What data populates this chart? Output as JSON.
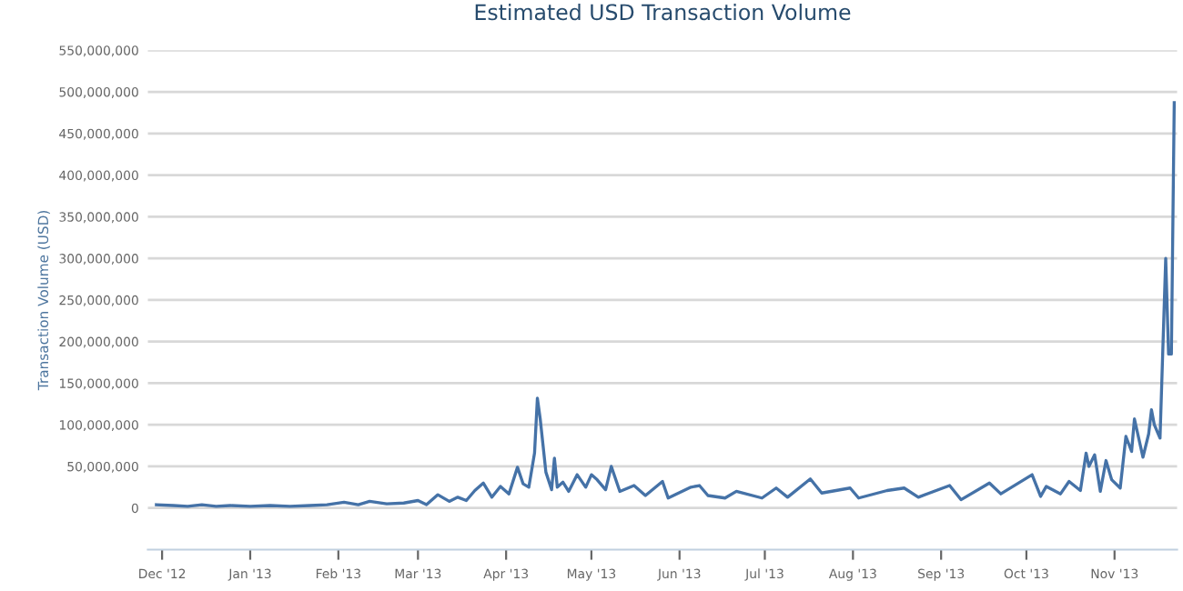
{
  "chart_data": {
    "type": "line",
    "title": "Estimated USD Transaction Volume",
    "ylabel": "Transaction Volume (USD)",
    "xlim": [
      "2012-11-26",
      "2013-11-23"
    ],
    "ylim": [
      -50000000,
      550000000
    ],
    "yticks": [
      {
        "value": 0,
        "label": "0"
      },
      {
        "value": 50000000,
        "label": "50,000,000"
      },
      {
        "value": 100000000,
        "label": "100,000,000"
      },
      {
        "value": 150000000,
        "label": "150,000,000"
      },
      {
        "value": 200000000,
        "label": "200,000,000"
      },
      {
        "value": 250000000,
        "label": "250,000,000"
      },
      {
        "value": 300000000,
        "label": "300,000,000"
      },
      {
        "value": 350000000,
        "label": "350,000,000"
      },
      {
        "value": 400000000,
        "label": "400,000,000"
      },
      {
        "value": 450000000,
        "label": "450,000,000"
      },
      {
        "value": 500000000,
        "label": "500,000,000"
      },
      {
        "value": 550000000,
        "label": "550,000,000"
      }
    ],
    "xticks": [
      {
        "value": "2012-12-01",
        "label": "Dec '12"
      },
      {
        "value": "2013-01-01",
        "label": "Jan '13"
      },
      {
        "value": "2013-02-01",
        "label": "Feb '13"
      },
      {
        "value": "2013-03-01",
        "label": "Mar '13"
      },
      {
        "value": "2013-04-01",
        "label": "Apr '13"
      },
      {
        "value": "2013-05-01",
        "label": "May '13"
      },
      {
        "value": "2013-06-01",
        "label": "Jun '13"
      },
      {
        "value": "2013-07-01",
        "label": "Jul '13"
      },
      {
        "value": "2013-08-01",
        "label": "Aug '13"
      },
      {
        "value": "2013-09-01",
        "label": "Sep '13"
      },
      {
        "value": "2013-10-01",
        "label": "Oct '13"
      },
      {
        "value": "2013-11-01",
        "label": "Nov '13"
      }
    ],
    "grid": "y",
    "marker": "none",
    "line_style": "solid",
    "series": [
      {
        "color": "#4572a7",
        "x": [
          "2012-11-29",
          "2012-12-05",
          "2012-12-10",
          "2012-12-15",
          "2012-12-20",
          "2012-12-25",
          "2013-01-01",
          "2013-01-08",
          "2013-01-15",
          "2013-01-22",
          "2013-01-28",
          "2013-02-03",
          "2013-02-08",
          "2013-02-12",
          "2013-02-18",
          "2013-02-24",
          "2013-03-01",
          "2013-03-04",
          "2013-03-08",
          "2013-03-12",
          "2013-03-15",
          "2013-03-18",
          "2013-03-21",
          "2013-03-24",
          "2013-03-27",
          "2013-03-30",
          "2013-04-02",
          "2013-04-05",
          "2013-04-07",
          "2013-04-09",
          "2013-04-11",
          "2013-04-12",
          "2013-04-13",
          "2013-04-15",
          "2013-04-17",
          "2013-04-18",
          "2013-04-19",
          "2013-04-21",
          "2013-04-23",
          "2013-04-26",
          "2013-04-29",
          "2013-05-01",
          "2013-05-03",
          "2013-05-06",
          "2013-05-08",
          "2013-05-11",
          "2013-05-16",
          "2013-05-20",
          "2013-05-26",
          "2013-05-28",
          "2013-06-05",
          "2013-06-08",
          "2013-06-11",
          "2013-06-17",
          "2013-06-21",
          "2013-06-30",
          "2013-07-05",
          "2013-07-09",
          "2013-07-17",
          "2013-07-21",
          "2013-07-31",
          "2013-08-03",
          "2013-08-13",
          "2013-08-19",
          "2013-08-24",
          "2013-09-04",
          "2013-09-08",
          "2013-09-18",
          "2013-09-22",
          "2013-10-03",
          "2013-10-06",
          "2013-10-08",
          "2013-10-13",
          "2013-10-16",
          "2013-10-20",
          "2013-10-22",
          "2013-10-23",
          "2013-10-25",
          "2013-10-27",
          "2013-10-29",
          "2013-10-31",
          "2013-11-03",
          "2013-11-05",
          "2013-11-07",
          "2013-11-08",
          "2013-11-11",
          "2013-11-13",
          "2013-11-14",
          "2013-11-15",
          "2013-11-17",
          "2013-11-19",
          "2013-11-20",
          "2013-11-21",
          "2013-11-22"
        ],
        "values": [
          4000000,
          3000000,
          2000000,
          4000000,
          2000000,
          3000000,
          2000000,
          3000000,
          2000000,
          3000000,
          4000000,
          7000000,
          4000000,
          8000000,
          5000000,
          6000000,
          9000000,
          4000000,
          16000000,
          8000000,
          13000000,
          9000000,
          21000000,
          30000000,
          13000000,
          26000000,
          17000000,
          49000000,
          29000000,
          25000000,
          66000000,
          132000000,
          107000000,
          43000000,
          22000000,
          60000000,
          25000000,
          31000000,
          20000000,
          40000000,
          25000000,
          40000000,
          34000000,
          22000000,
          50000000,
          20000000,
          27000000,
          15000000,
          32000000,
          12000000,
          25000000,
          27000000,
          15000000,
          12000000,
          20000000,
          12000000,
          24000000,
          13000000,
          35000000,
          18000000,
          24000000,
          12000000,
          21000000,
          24000000,
          13000000,
          27000000,
          10000000,
          30000000,
          17000000,
          40000000,
          14000000,
          26000000,
          17000000,
          32000000,
          21000000,
          66000000,
          50000000,
          64000000,
          20000000,
          57000000,
          34000000,
          24000000,
          86000000,
          68000000,
          107000000,
          61000000,
          89000000,
          118000000,
          100000000,
          84000000,
          300000000,
          185000000,
          185000000,
          487000000
        ]
      }
    ]
  }
}
